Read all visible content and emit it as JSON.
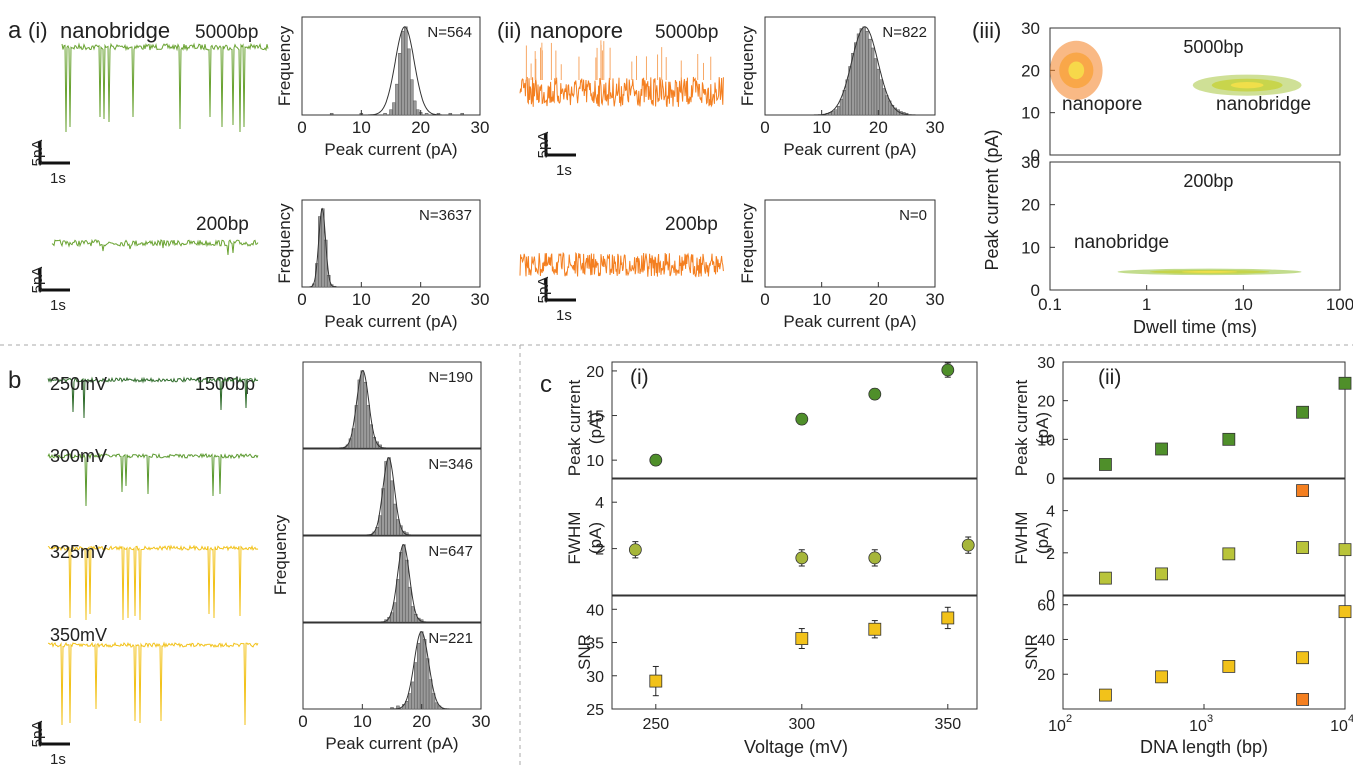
{
  "colors": {
    "green": "#6aa332",
    "dark_green": "#2e6b2a",
    "mid_green": "#5c9a30",
    "yellow": "#f2c21a",
    "orange": "#f47f20",
    "olive": "#b9c43a",
    "gray_bar": "#9a9a9a"
  },
  "panels": {
    "a": "a",
    "a_i": "(i)",
    "a_ii": "(ii)",
    "a_iii": "(iii)",
    "b": "b",
    "c": "c",
    "c_i": "(i)",
    "c_ii": "(ii)"
  },
  "labels": {
    "nanobridge": "nanobridge",
    "nanopore": "nanopore",
    "bp5000": "5000bp",
    "bp200": "200bp",
    "bp1500": "1500bp",
    "scale_y": "5pA",
    "scale_x": "1s",
    "frequency": "Frequency",
    "peak_current_axis": "Peak current (pA)",
    "peak_current": "Peak current",
    "pa_unit": "(pA)",
    "fwhm": "FWHM",
    "snr": "SNR",
    "dwell_time": "Dwell time (ms)",
    "voltage": "Voltage (mV)",
    "dna_length": "DNA length (bp)"
  },
  "chart_data": [
    {
      "id": "hist_nanobridge_5000",
      "type": "bar",
      "color": "#9a9a9a",
      "annotation": "N=564",
      "annotation_color": "#6aa332",
      "xlabel": "Peak current (pA)",
      "ylabel": "Frequency",
      "xlim": [
        0,
        30
      ],
      "xticks": [
        0,
        10,
        20,
        30
      ],
      "bin_width": 0.5,
      "x": [
        5,
        10,
        14,
        15,
        15.5,
        16,
        16.5,
        17,
        17.5,
        18,
        18.5,
        19,
        19.5,
        20,
        21,
        23,
        25,
        27
      ],
      "values": [
        2,
        2,
        2,
        6,
        14,
        35,
        70,
        95,
        100,
        75,
        40,
        16,
        6,
        3,
        2,
        2,
        2,
        2
      ]
    },
    {
      "id": "hist_nanopore_5000",
      "type": "bar",
      "color": "#9a9a9a",
      "annotation": "N=822",
      "annotation_color": "#f47f20",
      "xlabel": "Peak current (pA)",
      "ylabel": "Frequency",
      "xlim": [
        0,
        30
      ],
      "xticks": [
        0,
        10,
        20,
        30
      ],
      "bin_width": 0.5,
      "x": [
        11,
        11.5,
        12,
        12.5,
        13,
        13.5,
        14,
        14.5,
        15,
        15.5,
        16,
        16.5,
        17,
        17.5,
        18,
        18.5,
        19,
        19.5,
        20,
        20.5,
        21,
        21.5,
        22,
        22.5,
        23,
        23.5,
        24,
        24.5,
        25
      ],
      "values": [
        2,
        3,
        4,
        6,
        10,
        18,
        28,
        40,
        55,
        70,
        82,
        92,
        98,
        100,
        95,
        86,
        76,
        64,
        52,
        40,
        30,
        22,
        16,
        11,
        8,
        6,
        4,
        3,
        2
      ]
    },
    {
      "id": "hist_nanobridge_200",
      "type": "bar",
      "color": "#9a9a9a",
      "annotation": "N=3637",
      "annotation_color": "#6aa332",
      "xlabel": "Peak current (pA)",
      "ylabel": "Frequency",
      "xlim": [
        0,
        30
      ],
      "xticks": [
        0,
        10,
        20,
        30
      ],
      "bin_width": 0.5,
      "x": [
        2,
        2.5,
        3,
        3.5,
        4,
        4.5,
        5,
        5.5
      ],
      "values": [
        4,
        30,
        90,
        100,
        60,
        15,
        3,
        1
      ]
    },
    {
      "id": "hist_nanopore_200",
      "type": "bar",
      "color": "#9a9a9a",
      "annotation": "N=0",
      "annotation_color": "#f47f20",
      "xlabel": "Peak current (pA)",
      "ylabel": "Frequency",
      "xlim": [
        0,
        30
      ],
      "xticks": [
        0,
        10,
        20,
        30
      ],
      "bin_width": 0.5,
      "x": [],
      "values": []
    },
    {
      "id": "hist_250mV",
      "type": "bar",
      "color": "#9a9a9a",
      "annotation": "N=190",
      "annotation_color": "#2e6b2a",
      "xlim": [
        0,
        30
      ],
      "bin_width": 0.5,
      "x": [
        7.5,
        8,
        8.5,
        9,
        9.5,
        10,
        10.5,
        11,
        11.5,
        12,
        12.5,
        13
      ],
      "values": [
        4,
        12,
        25,
        55,
        88,
        100,
        85,
        55,
        30,
        14,
        8,
        4
      ]
    },
    {
      "id": "hist_300mV",
      "type": "bar",
      "color": "#9a9a9a",
      "annotation": "N=346",
      "annotation_color": "#5c9a30",
      "xlim": [
        0,
        30
      ],
      "bin_width": 0.5,
      "x": [
        12,
        12.5,
        13,
        13.5,
        14,
        14.5,
        15,
        15.5,
        16,
        16.5,
        17,
        17.5
      ],
      "values": [
        4,
        10,
        25,
        60,
        95,
        100,
        70,
        40,
        20,
        12,
        5,
        3
      ]
    },
    {
      "id": "hist_325mV",
      "type": "bar",
      "color": "#9a9a9a",
      "annotation": "N=647",
      "annotation_color": "#f2c21a",
      "xlim": [
        0,
        30
      ],
      "bin_width": 0.5,
      "x": [
        14,
        14.5,
        15,
        15.5,
        16,
        16.5,
        17,
        17.5,
        18,
        18.5,
        19,
        19.5,
        20
      ],
      "values": [
        3,
        6,
        12,
        25,
        55,
        90,
        100,
        80,
        45,
        20,
        10,
        5,
        3
      ]
    },
    {
      "id": "hist_350mV",
      "type": "bar",
      "color": "#9a9a9a",
      "annotation": "N=221",
      "annotation_color": "#f2c21a",
      "xlabel": "Peak current (pA)",
      "xlim": [
        0,
        30
      ],
      "xticks": [
        0,
        10,
        20,
        30
      ],
      "bin_width": 0.5,
      "x": [
        15,
        16,
        17,
        17.5,
        18,
        18.5,
        19,
        19.5,
        20,
        20.5,
        21,
        21.5,
        22,
        22.5,
        23
      ],
      "values": [
        2,
        4,
        6,
        10,
        20,
        35,
        60,
        85,
        100,
        90,
        65,
        38,
        20,
        8,
        4
      ]
    },
    {
      "id": "dwell_5000",
      "type": "scatter",
      "title": "5000bp",
      "xscale": "log",
      "xlim": [
        0.1,
        100
      ],
      "ylim": [
        0,
        30
      ],
      "yticks": [
        0,
        10,
        20,
        30
      ],
      "clusters": [
        {
          "name": "nanopore",
          "x_range": [
            0.1,
            0.35
          ],
          "y_range": [
            13,
            27
          ],
          "color": "#f47f20"
        },
        {
          "name": "nanobridge",
          "x_range": [
            3,
            40
          ],
          "y_range": [
            14,
            19
          ],
          "color": "#a8c640"
        }
      ]
    },
    {
      "id": "dwell_200",
      "type": "scatter",
      "title": "200bp",
      "xscale": "log",
      "xlabel": "Dwell time (ms)",
      "xlim": [
        0.1,
        100
      ],
      "xticks": [
        0.1,
        1,
        10,
        100
      ],
      "ylim": [
        0,
        30
      ],
      "yticks": [
        0,
        10,
        20,
        30
      ],
      "ylabel": "Peak current (pA)",
      "clusters": [
        {
          "name": "nanobridge",
          "x_range": [
            0.5,
            40
          ],
          "y_range": [
            3.5,
            5
          ],
          "color": "#8fbf30"
        }
      ]
    },
    {
      "id": "ci_peak",
      "type": "scatter",
      "marker": "circle",
      "ylabel": "Peak current (pA)",
      "xlim": [
        235,
        360
      ],
      "ylim": [
        8,
        21
      ],
      "yticks": [
        10,
        15,
        20
      ],
      "x": [
        250,
        300,
        325,
        350
      ],
      "y": [
        10,
        14.6,
        17.4,
        20.1
      ],
      "err": [
        0.6,
        0.6,
        0.6,
        0.8
      ],
      "color": "#4f8f2a"
    },
    {
      "id": "ci_fwhm",
      "type": "scatter",
      "marker": "circle",
      "ylabel": "FWHM (pA)",
      "xlim": [
        235,
        360
      ],
      "ylim": [
        0,
        5
      ],
      "yticks": [
        2,
        4
      ],
      "x": [
        243,
        300,
        325,
        357
      ],
      "y": [
        1.95,
        1.6,
        1.6,
        2.15
      ],
      "err": [
        0.35,
        0.35,
        0.35,
        0.35
      ],
      "color": "#a6b63a"
    },
    {
      "id": "ci_snr",
      "type": "scatter",
      "marker": "square",
      "ylabel": "SNR",
      "xlabel": "Voltage (mV)",
      "xlim": [
        235,
        360
      ],
      "ylim": [
        25,
        42
      ],
      "yticks": [
        25,
        30,
        35,
        40
      ],
      "xticks": [
        250,
        300,
        350
      ],
      "x": [
        250,
        300,
        325,
        350
      ],
      "y": [
        29.2,
        35.6,
        37,
        38.7
      ],
      "err": [
        2.2,
        1.5,
        1.3,
        1.6
      ],
      "color": "#f2c21a"
    },
    {
      "id": "cii_peak",
      "type": "scatter",
      "marker": "square",
      "ylabel": "Peak current (pA)",
      "xscale": "log",
      "xlim": [
        100,
        10000
      ],
      "ylim": [
        0,
        30
      ],
      "yticks": [
        0,
        10,
        20,
        30
      ],
      "x": [
        200,
        500,
        1500,
        5000,
        10000
      ],
      "y": [
        3.5,
        7.5,
        10,
        17,
        24.5
      ],
      "err": [
        0.8,
        0.8,
        0.8,
        1,
        1
      ],
      "color": "#4f8f2a"
    },
    {
      "id": "cii_fwhm",
      "type": "scatter",
      "marker": "square",
      "ylabel": "FWHM (pA)",
      "xscale": "log",
      "xlim": [
        100,
        10000
      ],
      "ylim": [
        0,
        5.5
      ],
      "yticks": [
        0,
        2,
        4
      ],
      "x": [
        200,
        500,
        1500,
        5000,
        10000
      ],
      "y": [
        0.8,
        1,
        1.95,
        2.25,
        2.15
      ],
      "err": [
        0,
        0,
        0,
        0,
        0
      ],
      "color": "#b9c43a",
      "extra": {
        "x": [
          5000
        ],
        "y": [
          4.95
        ],
        "color": "#f47f20"
      }
    },
    {
      "id": "cii_snr",
      "type": "scatter",
      "marker": "square",
      "ylabel": "SNR",
      "xlabel": "DNA length (bp)",
      "xscale": "log",
      "xlim": [
        100,
        10000
      ],
      "ylim": [
        0,
        65
      ],
      "yticks": [
        20,
        40,
        60
      ],
      "x": [
        200,
        500,
        1500,
        5000,
        10000
      ],
      "y": [
        8,
        18.5,
        24.5,
        29.5,
        56
      ],
      "err": [
        2,
        2,
        2.5,
        2.5,
        2.5
      ],
      "color": "#f2c21a",
      "extra": {
        "x": [
          5000
        ],
        "y": [
          5.5
        ],
        "color": "#f47f20"
      }
    }
  ]
}
